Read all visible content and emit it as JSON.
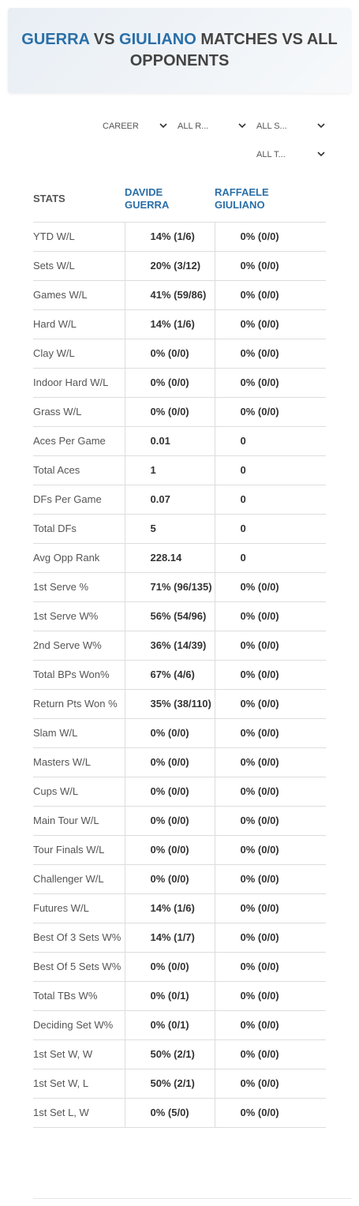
{
  "header": {
    "title": [
      "GUERRA",
      "VS",
      "GIULIANO",
      "MATCHES VS ALL OPPONENTS"
    ]
  },
  "filters": [
    "CAREER",
    "ALL R...",
    "ALL S...",
    "ALL T..."
  ],
  "table": {
    "columns": [
      "STATS",
      "DAVIDE GUERRA",
      "RAFFAELE GIULIANO"
    ],
    "rows": [
      [
        "YTD W/L",
        "14% (1/6)",
        "0% (0/0)"
      ],
      [
        "Sets W/L",
        "20% (3/12)",
        "0% (0/0)"
      ],
      [
        "Games W/L",
        "41% (59/86)",
        "0% (0/0)"
      ],
      [
        "Hard W/L",
        "14% (1/6)",
        "0% (0/0)"
      ],
      [
        "Clay W/L",
        "0% (0/0)",
        "0% (0/0)"
      ],
      [
        "Indoor Hard W/L",
        "0% (0/0)",
        "0% (0/0)"
      ],
      [
        "Grass W/L",
        "0% (0/0)",
        "0% (0/0)"
      ],
      [
        "Aces Per Game",
        "0.01",
        "0"
      ],
      [
        "Total Aces",
        "1",
        "0"
      ],
      [
        "DFs Per Game",
        "0.07",
        "0"
      ],
      [
        "Total DFs",
        "5",
        "0"
      ],
      [
        "Avg Opp Rank",
        "228.14",
        "0"
      ],
      [
        "1st Serve %",
        "71% (96/135)",
        "0% (0/0)"
      ],
      [
        "1st Serve W%",
        "56% (54/96)",
        "0% (0/0)"
      ],
      [
        "2nd Serve W%",
        "36% (14/39)",
        "0% (0/0)"
      ],
      [
        "Total BPs Won%",
        "67% (4/6)",
        "0% (0/0)"
      ],
      [
        "Return Pts Won %",
        "35% (38/110)",
        "0% (0/0)"
      ],
      [
        "Slam W/L",
        "0% (0/0)",
        "0% (0/0)"
      ],
      [
        "Masters W/L",
        "0% (0/0)",
        "0% (0/0)"
      ],
      [
        "Cups W/L",
        "0% (0/0)",
        "0% (0/0)"
      ],
      [
        "Main Tour W/L",
        "0% (0/0)",
        "0% (0/0)"
      ],
      [
        "Tour Finals W/L",
        "0% (0/0)",
        "0% (0/0)"
      ],
      [
        "Challenger W/L",
        "0% (0/0)",
        "0% (0/0)"
      ],
      [
        "Futures W/L",
        "14% (1/6)",
        "0% (0/0)"
      ],
      [
        "Best Of 3 Sets W%",
        "14% (1/7)",
        "0% (0/0)"
      ],
      [
        "Best Of 5 Sets W%",
        "0% (0/0)",
        "0% (0/0)"
      ],
      [
        "Total TBs W%",
        "0% (0/1)",
        "0% (0/0)"
      ],
      [
        "Deciding Set W%",
        "0% (0/1)",
        "0% (0/0)"
      ],
      [
        "1st Set W, W",
        "50% (2/1)",
        "0% (0/0)"
      ],
      [
        "1st Set W, L",
        "50% (2/1)",
        "0% (0/0)"
      ],
      [
        "1st Set L, W",
        "0% (5/0)",
        "0% (0/0)"
      ]
    ]
  }
}
